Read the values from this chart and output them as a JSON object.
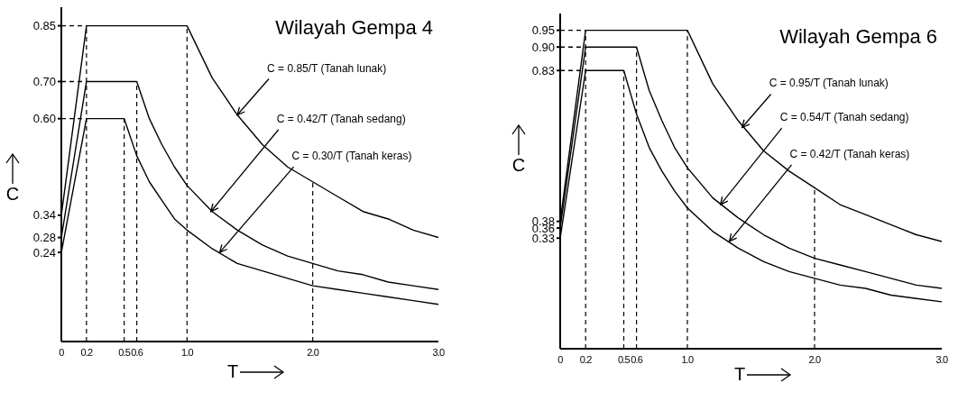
{
  "chart_data": [
    {
      "type": "line",
      "title": "Wilayah Gempa 4",
      "xlabel": "T",
      "ylabel": "C",
      "xlim": [
        0,
        3
      ],
      "ylim": [
        0,
        0.9
      ],
      "xticks": [
        0,
        0.2,
        0.5,
        0.6,
        {
          "value": 1,
          "label": "1.0"
        },
        {
          "value": 2,
          "label": "2.0"
        },
        {
          "value": 3,
          "label": "3.0"
        }
      ],
      "yticks": [
        0.24,
        0.28,
        0.34,
        {
          "value": 0.6,
          "label": "0.60"
        },
        {
          "value": 0.7,
          "label": "0.70"
        },
        0.85
      ],
      "grid": false,
      "marker": "none",
      "line_style": "solid",
      "series": [
        {
          "color": "#000000",
          "x": [
            0,
            0.2,
            1.0,
            1.2,
            1.4,
            1.6,
            1.8,
            2.0,
            2.2,
            2.4,
            2.6,
            2.8,
            3.0
          ],
          "values": [
            0.34,
            0.85,
            0.85,
            0.71,
            0.61,
            0.53,
            0.47,
            0.43,
            0.39,
            0.35,
            0.33,
            0.3,
            0.28
          ]
        },
        {
          "color": "#000000",
          "x": [
            0,
            0.2,
            0.6,
            0.7,
            0.8,
            0.9,
            1.0,
            1.2,
            1.4,
            1.6,
            1.8,
            2.0,
            2.2,
            2.4,
            2.6,
            2.8,
            3.0
          ],
          "values": [
            0.28,
            0.7,
            0.7,
            0.6,
            0.53,
            0.47,
            0.42,
            0.35,
            0.3,
            0.26,
            0.23,
            0.21,
            0.19,
            0.18,
            0.16,
            0.15,
            0.14
          ]
        },
        {
          "color": "#000000",
          "x": [
            0,
            0.2,
            0.5,
            0.6,
            0.7,
            0.8,
            0.9,
            1.0,
            1.2,
            1.4,
            1.6,
            1.8,
            2.0,
            2.2,
            2.4,
            2.6,
            2.8,
            3.0
          ],
          "values": [
            0.24,
            0.6,
            0.6,
            0.5,
            0.43,
            0.38,
            0.33,
            0.3,
            0.25,
            0.21,
            0.19,
            0.17,
            0.15,
            0.14,
            0.13,
            0.12,
            0.11,
            0.1
          ]
        },
        {
          "color": "#000000",
          "line_style": "dashed",
          "x": [
            0,
            0.2
          ],
          "values": [
            0.85,
            0.85
          ]
        },
        {
          "color": "#000000",
          "line_style": "dashed",
          "x": [
            0,
            0.2
          ],
          "values": [
            0.7,
            0.7
          ]
        },
        {
          "color": "#000000",
          "line_style": "dashed",
          "x": [
            0,
            0.2
          ],
          "values": [
            0.6,
            0.6
          ]
        }
      ],
      "ref_lines": [
        {
          "axis": "x",
          "value": 0.2,
          "line_style": "dashed"
        },
        {
          "axis": "x",
          "value": 0.5,
          "line_style": "dashed"
        },
        {
          "axis": "x",
          "value": 0.6,
          "line_style": "dashed"
        },
        {
          "axis": "x",
          "value": 1,
          "line_style": "dashed"
        },
        {
          "axis": "x",
          "value": 2,
          "line_style": "dashed"
        }
      ],
      "annotations": [
        {
          "text": "C = 0.85/T (Tanah lunak)",
          "x": 1.4,
          "y": 0.61
        },
        {
          "text": "C = 0.42/T (Tanah sedang)",
          "x": 1.19,
          "y": 0.35
        },
        {
          "text": "C = 0.30/T (Tanah keras)",
          "x": 1.26,
          "y": 0.24
        }
      ]
    },
    {
      "type": "line",
      "title": "Wilayah Gempa 6",
      "xlabel": "T",
      "ylabel": "C",
      "xlim": [
        0,
        3
      ],
      "ylim": [
        0,
        1.0
      ],
      "xticks": [
        0,
        0.2,
        0.5,
        0.6,
        {
          "value": 1,
          "label": "1.0"
        },
        {
          "value": 2,
          "label": "2.0"
        },
        {
          "value": 3,
          "label": "3.0"
        }
      ],
      "yticks": [
        0.33,
        0.36,
        0.38,
        0.83,
        {
          "value": 0.9,
          "label": "0.90"
        },
        0.95
      ],
      "grid": false,
      "marker": "none",
      "line_style": "solid",
      "series": [
        {
          "color": "#000000",
          "x": [
            0,
            0.2,
            1.0,
            1.2,
            1.4,
            1.6,
            1.8,
            2.0,
            2.2,
            2.4,
            2.6,
            2.8,
            3.0
          ],
          "values": [
            0.38,
            0.95,
            0.95,
            0.79,
            0.68,
            0.59,
            0.53,
            0.48,
            0.43,
            0.4,
            0.37,
            0.34,
            0.32
          ]
        },
        {
          "color": "#000000",
          "x": [
            0,
            0.2,
            0.6,
            0.7,
            0.8,
            0.9,
            1.0,
            1.2,
            1.4,
            1.6,
            1.8,
            2.0,
            2.2,
            2.4,
            2.6,
            2.8,
            3.0
          ],
          "values": [
            0.36,
            0.9,
            0.9,
            0.77,
            0.68,
            0.6,
            0.54,
            0.45,
            0.39,
            0.34,
            0.3,
            0.27,
            0.25,
            0.23,
            0.21,
            0.19,
            0.18
          ]
        },
        {
          "color": "#000000",
          "x": [
            0,
            0.2,
            0.5,
            0.6,
            0.7,
            0.8,
            0.9,
            1.0,
            1.2,
            1.4,
            1.6,
            1.8,
            2.0,
            2.2,
            2.4,
            2.6,
            2.8,
            3.0
          ],
          "values": [
            0.33,
            0.83,
            0.83,
            0.7,
            0.6,
            0.53,
            0.47,
            0.42,
            0.35,
            0.3,
            0.26,
            0.23,
            0.21,
            0.19,
            0.18,
            0.16,
            0.15,
            0.14
          ]
        },
        {
          "color": "#000000",
          "line_style": "dashed",
          "x": [
            0,
            0.2
          ],
          "values": [
            0.95,
            0.95
          ]
        },
        {
          "color": "#000000",
          "line_style": "dashed",
          "x": [
            0,
            0.2
          ],
          "values": [
            0.9,
            0.9
          ]
        },
        {
          "color": "#000000",
          "line_style": "dashed",
          "x": [
            0,
            0.2
          ],
          "values": [
            0.83,
            0.83
          ]
        }
      ],
      "ref_lines": [
        {
          "axis": "x",
          "value": 0.2,
          "line_style": "dashed"
        },
        {
          "axis": "x",
          "value": 0.5,
          "line_style": "dashed"
        },
        {
          "axis": "x",
          "value": 0.6,
          "line_style": "dashed"
        },
        {
          "axis": "x",
          "value": 1,
          "line_style": "dashed"
        },
        {
          "axis": "x",
          "value": 2,
          "line_style": "dashed"
        }
      ],
      "annotations": [
        {
          "text": "C = 0.95/T (Tanah lunak)",
          "x": 1.43,
          "y": 0.66
        },
        {
          "text": "C = 0.54/T (Tanah sedang)",
          "x": 1.26,
          "y": 0.43
        },
        {
          "text": "C = 0.42/T (Tanah keras)",
          "x": 1.33,
          "y": 0.32
        }
      ]
    }
  ]
}
